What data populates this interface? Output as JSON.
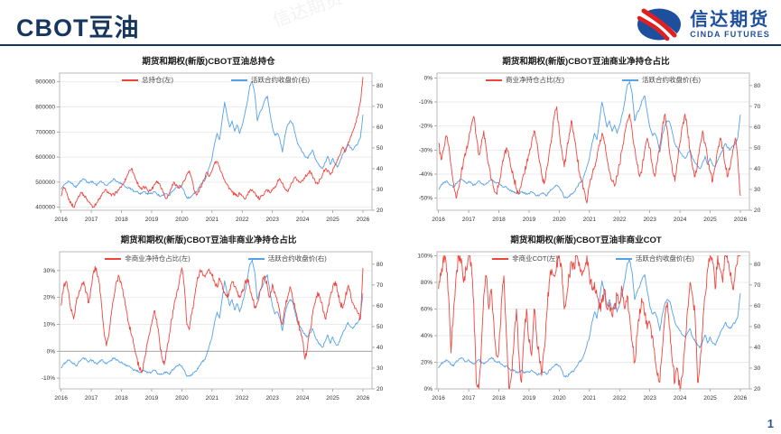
{
  "page": {
    "header_title": "CBOT豆油",
    "page_number": "1",
    "watermark": "信达期货"
  },
  "logo": {
    "cn": "信达期货",
    "en": "CINDA FUTURES",
    "brand_blue": "#1d4f9e",
    "brand_red": "#e02020"
  },
  "chart_data": {
    "type": "line",
    "x_ticks": [
      2016,
      2017,
      2018,
      2019,
      2020,
      2021,
      2022,
      2023,
      2024,
      2025,
      2026
    ],
    "x_domain": [
      2015.95,
      2026.3
    ],
    "x_start_year": 2016,
    "points_per_year": 12,
    "grid": true,
    "red_color": "#f0453e",
    "right_axis": {
      "ticks": [
        80,
        70,
        60,
        50,
        40,
        30,
        20
      ],
      "lim": [
        20,
        86
      ]
    },
    "price_series": {
      "label": "活跃合约收盘价(右)",
      "color": "#55a1e8",
      "jitter": 0.5,
      "values": [
        30,
        32,
        33,
        34,
        33,
        32,
        31,
        33,
        34,
        35,
        34,
        33,
        34,
        33,
        32,
        33,
        34,
        33,
        32,
        33,
        34,
        35,
        34,
        33,
        33,
        32,
        31,
        31,
        30,
        29,
        29,
        28,
        28,
        29,
        28,
        28,
        28,
        29,
        28,
        27,
        27,
        28,
        28,
        27,
        29,
        30,
        31,
        32,
        31,
        29,
        26,
        26,
        27,
        28,
        29,
        31,
        33,
        34,
        37,
        41,
        45,
        52,
        57,
        54,
        63,
        72,
        66,
        60,
        63,
        58,
        61,
        57,
        61,
        66,
        72,
        80,
        82,
        76,
        63,
        67,
        69,
        73,
        75,
        67,
        60,
        56,
        57,
        54,
        48,
        56,
        61,
        63,
        62,
        57,
        52,
        50,
        48,
        46,
        45,
        47,
        49,
        45,
        43,
        41,
        40,
        43,
        46,
        42,
        45,
        42,
        41,
        44,
        47,
        49,
        52,
        50,
        49,
        51,
        52,
        55,
        66
      ]
    },
    "charts": [
      {
        "title": "期货和期权(新版)CBOT豆油总持仓",
        "red_label": "总持仓(左)",
        "blue_label": "活跃合约收盘价(右)",
        "left_format": "plain",
        "left_ticks": [
          900000,
          800000,
          700000,
          600000,
          500000,
          400000
        ],
        "left_lim": [
          388000,
          935000
        ],
        "jitter": 7000,
        "zero_line": false,
        "red_values": [
          445000,
          480000,
          460000,
          430000,
          415000,
          400000,
          420000,
          445000,
          460000,
          450000,
          435000,
          420000,
          410000,
          400000,
          415000,
          430000,
          445000,
          460000,
          470000,
          455000,
          445000,
          450000,
          460000,
          470000,
          480000,
          500000,
          520000,
          545000,
          555000,
          530000,
          505000,
          485000,
          470000,
          480000,
          475000,
          465000,
          470000,
          490000,
          505000,
          495000,
          475000,
          450000,
          435000,
          455000,
          480000,
          500000,
          485000,
          475000,
          485000,
          505000,
          530000,
          545000,
          510000,
          465000,
          450000,
          470000,
          490000,
          515000,
          540000,
          525000,
          545000,
          575000,
          580000,
          560000,
          535000,
          510000,
          490000,
          475000,
          460000,
          450000,
          445000,
          455000,
          445000,
          432000,
          450000,
          465000,
          470000,
          458000,
          442000,
          432000,
          448000,
          462000,
          470000,
          458000,
          468000,
          482000,
          500000,
          512000,
          495000,
          472000,
          462000,
          480000,
          498000,
          518000,
          508000,
          498000,
          508000,
          520000,
          532000,
          545000,
          522000,
          502000,
          492000,
          512000,
          532000,
          552000,
          545000,
          530000,
          548000,
          568000,
          590000,
          612000,
          640000,
          622000,
          648000,
          678000,
          702000,
          735000,
          765000,
          820000,
          920000
        ]
      },
      {
        "title": "期货和期权(新版)CBOT豆油商业净持仓占比",
        "red_label": "商业净持仓占比(左)",
        "blue_label": "活跃合约收盘价(右)",
        "left_format": "percent",
        "left_ticks": [
          0,
          -10,
          -20,
          -30,
          -40,
          -50
        ],
        "left_lim": [
          -55,
          2
        ],
        "jitter": 1.5,
        "zero_line": false,
        "red_values": [
          -27,
          -34,
          -30,
          -24,
          -28,
          -36,
          -44,
          -50,
          -46,
          -40,
          -34,
          -30,
          -26,
          -20,
          -16,
          -24,
          -32,
          -28,
          -22,
          -30,
          -36,
          -42,
          -46,
          -48,
          -44,
          -38,
          -33,
          -29,
          -33,
          -38,
          -42,
          -46,
          -48,
          -44,
          -40,
          -36,
          -32,
          -27,
          -22,
          -27,
          -34,
          -40,
          -44,
          -38,
          -31,
          -25,
          -16,
          -12,
          -22,
          -30,
          -37,
          -30,
          -23,
          -18,
          -25,
          -32,
          -39,
          -43,
          -47,
          -52,
          -45,
          -41,
          -37,
          -33,
          -28,
          -23,
          -27,
          -34,
          -39,
          -43,
          -45,
          -41,
          -36,
          -30,
          -23,
          -18,
          -15,
          -22,
          -29,
          -36,
          -41,
          -37,
          -30,
          -25,
          -29,
          -36,
          -41,
          -35,
          -28,
          -21,
          -15,
          -22,
          -32,
          -39,
          -43,
          -35,
          -27,
          -20,
          -15,
          -22,
          -30,
          -37,
          -41,
          -35,
          -28,
          -22,
          -27,
          -34,
          -39,
          -43,
          -37,
          -30,
          -25,
          -29,
          -36,
          -41,
          -37,
          -30,
          -25,
          -34,
          -49
        ]
      },
      {
        "title": "期货和期权(新版)CBOT豆油非商业净持仓占比",
        "red_label": "非商业净持仓占比(左)",
        "blue_label": "活跃合约收盘价(右)",
        "left_format": "percent",
        "left_ticks": [
          30,
          20,
          10,
          0,
          -10
        ],
        "left_lim": [
          -14,
          37
        ],
        "jitter": 1.2,
        "zero_line": true,
        "red_values": [
          17,
          24,
          26,
          22,
          15,
          12,
          18,
          21,
          24,
          26,
          22,
          18,
          24,
          30,
          31,
          26,
          18,
          8,
          2,
          6,
          14,
          20,
          26,
          28,
          25,
          20,
          15,
          10,
          6,
          2,
          -2,
          -6,
          -8,
          -4,
          2,
          6,
          10,
          15,
          12,
          5,
          -2,
          -5,
          0,
          6,
          12,
          18,
          22,
          26,
          31,
          24,
          10,
          8,
          14,
          20,
          26,
          29,
          30,
          28,
          29,
          30,
          28,
          26,
          24,
          27,
          25,
          22,
          20,
          23,
          26,
          24,
          22,
          20,
          22,
          25,
          27,
          24,
          20,
          16,
          18,
          22,
          26,
          28,
          24,
          20,
          25,
          22,
          18,
          14,
          10,
          16,
          20,
          24,
          20,
          16,
          12,
          8,
          4,
          -3,
          2,
          8,
          14,
          18,
          22,
          20,
          16,
          12,
          16,
          20,
          24,
          26,
          22,
          18,
          16,
          20,
          24,
          22,
          18,
          16,
          14,
          12,
          31
        ]
      },
      {
        "title": "期货和期权(新版)CBOT豆油非商业COT",
        "red_label": "非商业COT(左)",
        "blue_label": "活跃合约收盘价(右)",
        "left_format": "percent",
        "left_ticks": [
          100,
          80,
          60,
          40,
          20,
          0
        ],
        "left_lim": [
          0,
          103
        ],
        "jitter": 5,
        "clamp": [
          0,
          100
        ],
        "zero_line": false,
        "red_values": [
          75,
          85,
          100,
          95,
          70,
          27,
          60,
          85,
          100,
          98,
          80,
          90,
          100,
          95,
          65,
          5,
          0,
          30,
          70,
          85,
          60,
          75,
          50,
          25,
          30,
          65,
          85,
          40,
          0,
          10,
          35,
          60,
          25,
          5,
          40,
          60,
          35,
          25,
          60,
          40,
          25,
          10,
          30,
          55,
          80,
          90,
          85,
          95,
          100,
          90,
          60,
          70,
          85,
          95,
          90,
          100,
          95,
          85,
          90,
          100,
          85,
          75,
          80,
          70,
          60,
          65,
          75,
          60,
          65,
          55,
          60,
          70,
          65,
          75,
          60,
          70,
          55,
          35,
          20,
          40,
          60,
          65,
          55,
          45,
          50,
          40,
          25,
          10,
          5,
          30,
          55,
          65,
          45,
          20,
          5,
          15,
          0,
          10,
          35,
          60,
          80,
          70,
          55,
          5,
          20,
          45,
          70,
          90,
          100,
          95,
          75,
          100,
          90,
          80,
          100,
          95,
          85,
          75,
          90,
          100,
          100
        ]
      }
    ]
  }
}
